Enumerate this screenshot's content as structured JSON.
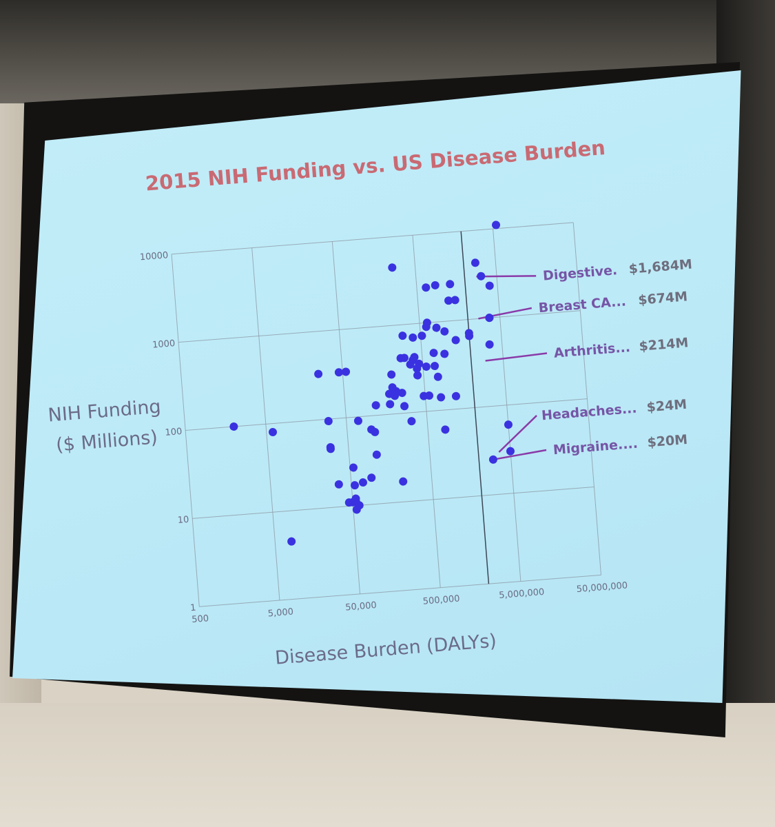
{
  "slide": {
    "title": "2015 NIH Funding vs. US Disease Burden",
    "source_url": "https://report.nih.gov/info_disease_burden.aspx"
  },
  "colors": {
    "title": "#c96a73",
    "dots": "#3a32e0",
    "annotation_label": "#7655a6",
    "annotation_line": "#8a3aa8",
    "slide_background": "#c3eef9"
  },
  "chart_data": {
    "type": "scatter",
    "title": "2015 NIH Funding vs. US Disease Burden",
    "xlabel": "Disease Burden  (DALYs)",
    "ylabel_lines": [
      "NIH Funding",
      "($ Millions)"
    ],
    "x_scale": "log",
    "y_scale": "log",
    "xlim": [
      500,
      50000000
    ],
    "ylim": [
      1,
      10000
    ],
    "x_ticks": [
      {
        "value": 500,
        "label": "500"
      },
      {
        "value": 5000,
        "label": "5,000"
      },
      {
        "value": 50000,
        "label": "50,000"
      },
      {
        "value": 500000,
        "label": "500,000"
      },
      {
        "value": 5000000,
        "label": "5,000,000"
      },
      {
        "value": 50000000,
        "label": "50,000,000"
      }
    ],
    "y_ticks": [
      {
        "value": 1,
        "label": "1"
      },
      {
        "value": 10,
        "label": "10"
      },
      {
        "value": 100,
        "label": "100"
      },
      {
        "value": 1000,
        "label": "1000"
      },
      {
        "value": 10000,
        "label": "10000"
      }
    ],
    "grid": true,
    "points": [
      {
        "x": 2000,
        "y": 100
      },
      {
        "x": 6000,
        "y": 80
      },
      {
        "x": 8000,
        "y": 4.5
      },
      {
        "x": 25000,
        "y": 330
      },
      {
        "x": 30000,
        "y": 95
      },
      {
        "x": 30000,
        "y": 48
      },
      {
        "x": 30000,
        "y": 46
      },
      {
        "x": 35000,
        "y": 18
      },
      {
        "x": 45000,
        "y": 330
      },
      {
        "x": 45000,
        "y": 11
      },
      {
        "x": 50000,
        "y": 11
      },
      {
        "x": 55000,
        "y": 330
      },
      {
        "x": 55000,
        "y": 27
      },
      {
        "x": 55000,
        "y": 17
      },
      {
        "x": 55000,
        "y": 12
      },
      {
        "x": 55000,
        "y": 11
      },
      {
        "x": 55000,
        "y": 9
      },
      {
        "x": 60000,
        "y": 10
      },
      {
        "x": 70000,
        "y": 90
      },
      {
        "x": 70000,
        "y": 18
      },
      {
        "x": 90000,
        "y": 20
      },
      {
        "x": 100000,
        "y": 70
      },
      {
        "x": 110000,
        "y": 65
      },
      {
        "x": 110000,
        "y": 36
      },
      {
        "x": 120000,
        "y": 130
      },
      {
        "x": 180000,
        "y": 170
      },
      {
        "x": 180000,
        "y": 130
      },
      {
        "x": 200000,
        "y": 280
      },
      {
        "x": 200000,
        "y": 200
      },
      {
        "x": 210000,
        "y": 160
      },
      {
        "x": 220000,
        "y": 180
      },
      {
        "x": 220000,
        "y": 17
      },
      {
        "x": 260000,
        "y": 4500
      },
      {
        "x": 260000,
        "y": 170
      },
      {
        "x": 270000,
        "y": 420
      },
      {
        "x": 270000,
        "y": 120
      },
      {
        "x": 300000,
        "y": 750
      },
      {
        "x": 300000,
        "y": 420
      },
      {
        "x": 320000,
        "y": 80
      },
      {
        "x": 350000,
        "y": 350
      },
      {
        "x": 380000,
        "y": 390
      },
      {
        "x": 400000,
        "y": 700
      },
      {
        "x": 400000,
        "y": 420
      },
      {
        "x": 420000,
        "y": 310
      },
      {
        "x": 420000,
        "y": 260
      },
      {
        "x": 450000,
        "y": 350
      },
      {
        "x": 480000,
        "y": 150
      },
      {
        "x": 520000,
        "y": 720
      },
      {
        "x": 550000,
        "y": 320
      },
      {
        "x": 560000,
        "y": 150
      },
      {
        "x": 600000,
        "y": 900
      },
      {
        "x": 620000,
        "y": 1000
      },
      {
        "x": 650000,
        "y": 2500
      },
      {
        "x": 700000,
        "y": 450
      },
      {
        "x": 700000,
        "y": 320
      },
      {
        "x": 750000,
        "y": 240
      },
      {
        "x": 780000,
        "y": 140
      },
      {
        "x": 800000,
        "y": 860
      },
      {
        "x": 820000,
        "y": 60
      },
      {
        "x": 850000,
        "y": 2600
      },
      {
        "x": 950000,
        "y": 430
      },
      {
        "x": 1000000,
        "y": 770
      },
      {
        "x": 1200000,
        "y": 140
      },
      {
        "x": 1200000,
        "y": 1700
      },
      {
        "x": 1300000,
        "y": 2600
      },
      {
        "x": 1350000,
        "y": 600
      },
      {
        "x": 1450000,
        "y": 1700
      },
      {
        "x": 2000000,
        "y": 700
      },
      {
        "x": 2000000,
        "y": 650
      },
      {
        "x": 2800000,
        "y": 4300
      },
      {
        "x": 3200000,
        "y": 3000
      },
      {
        "x": 4000000,
        "y": 2300
      },
      {
        "x": 5500000,
        "y": 11000
      },
      {
        "x": 3000000,
        "y": 25
      },
      {
        "x": 3500000,
        "y": 500
      },
      {
        "x": 3700000,
        "y": 1000
      },
      {
        "x": 3700000,
        "y": 1000
      },
      {
        "x": 5000000,
        "y": 60
      },
      {
        "x": 5000000,
        "y": 30
      }
    ],
    "annotations": [
      {
        "label": "Digestive.",
        "value": "$1,684M"
      },
      {
        "label": "Breast CA...",
        "value": "$674M"
      },
      {
        "label": "Arthritis...",
        "value": "$214M"
      },
      {
        "label": "Headaches...",
        "value": "$24M"
      },
      {
        "label": "Migraine....",
        "value": "$20M"
      }
    ]
  }
}
